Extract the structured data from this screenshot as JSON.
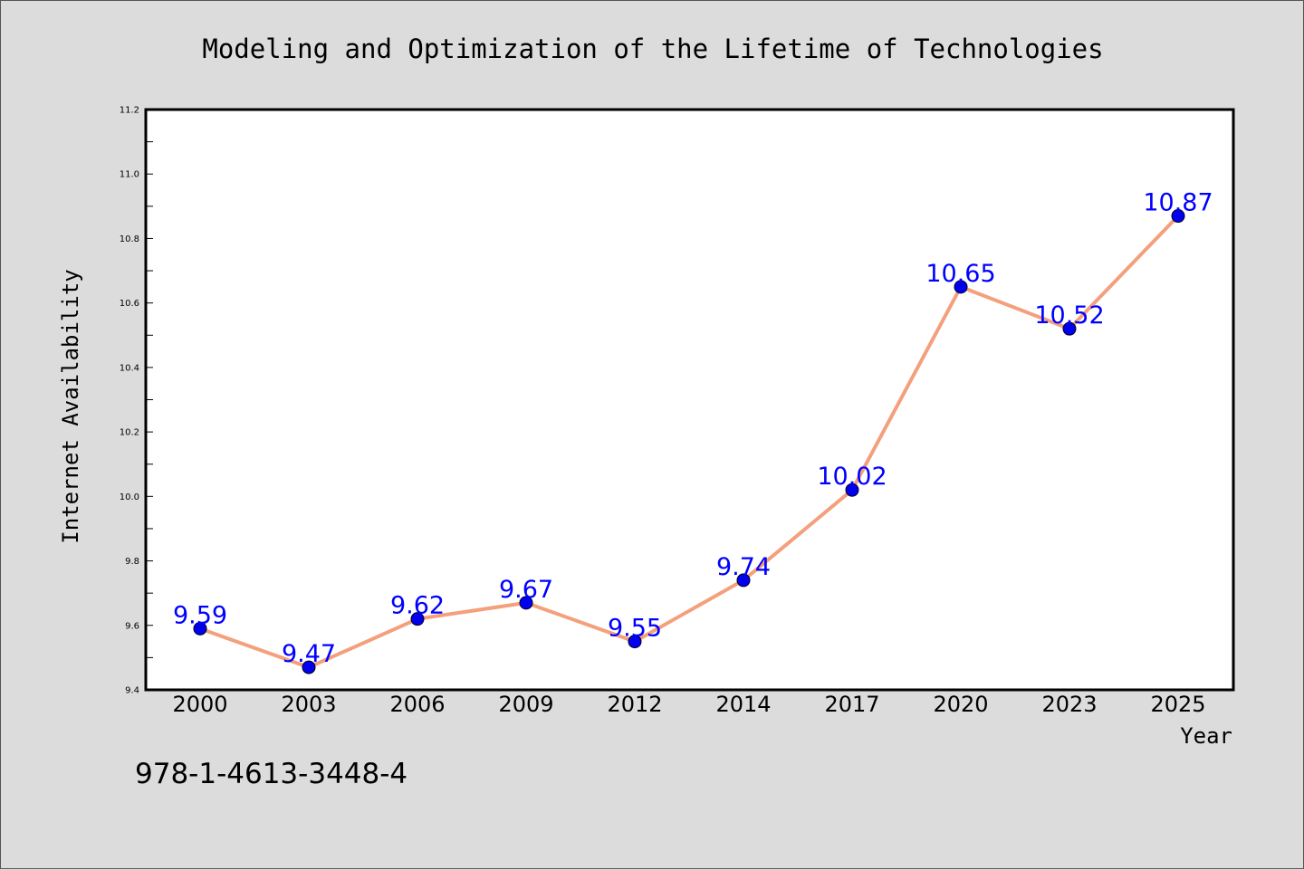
{
  "chart_data": {
    "type": "line",
    "title": "Modeling and Optimization of the Lifetime of Technologies",
    "xlabel": "Year",
    "ylabel": "Internet Availability",
    "categories": [
      "2000",
      "2003",
      "2006",
      "2009",
      "2012",
      "2014",
      "2017",
      "2020",
      "2023",
      "2025"
    ],
    "series": [
      {
        "values": [
          9.59,
          9.47,
          9.62,
          9.67,
          9.55,
          9.74,
          10.02,
          10.65,
          10.52,
          10.87
        ],
        "line_color": "#f4a07c",
        "marker_color": "#0000ee"
      }
    ],
    "data_labels": [
      "9.59",
      "9.47",
      "9.62",
      "9.67",
      "9.55",
      "9.74",
      "10.02",
      "10.65",
      "10.52",
      "10.87"
    ],
    "yticks": [
      "9.4",
      "9.6",
      "9.8",
      "10.0",
      "10.2",
      "10.4",
      "10.6",
      "10.8",
      "11.0",
      "11.2"
    ],
    "ylim": [
      9.4,
      11.2
    ],
    "grid": false,
    "legend": "none"
  },
  "footer": {
    "isbn": "978-1-4613-3448-4"
  }
}
